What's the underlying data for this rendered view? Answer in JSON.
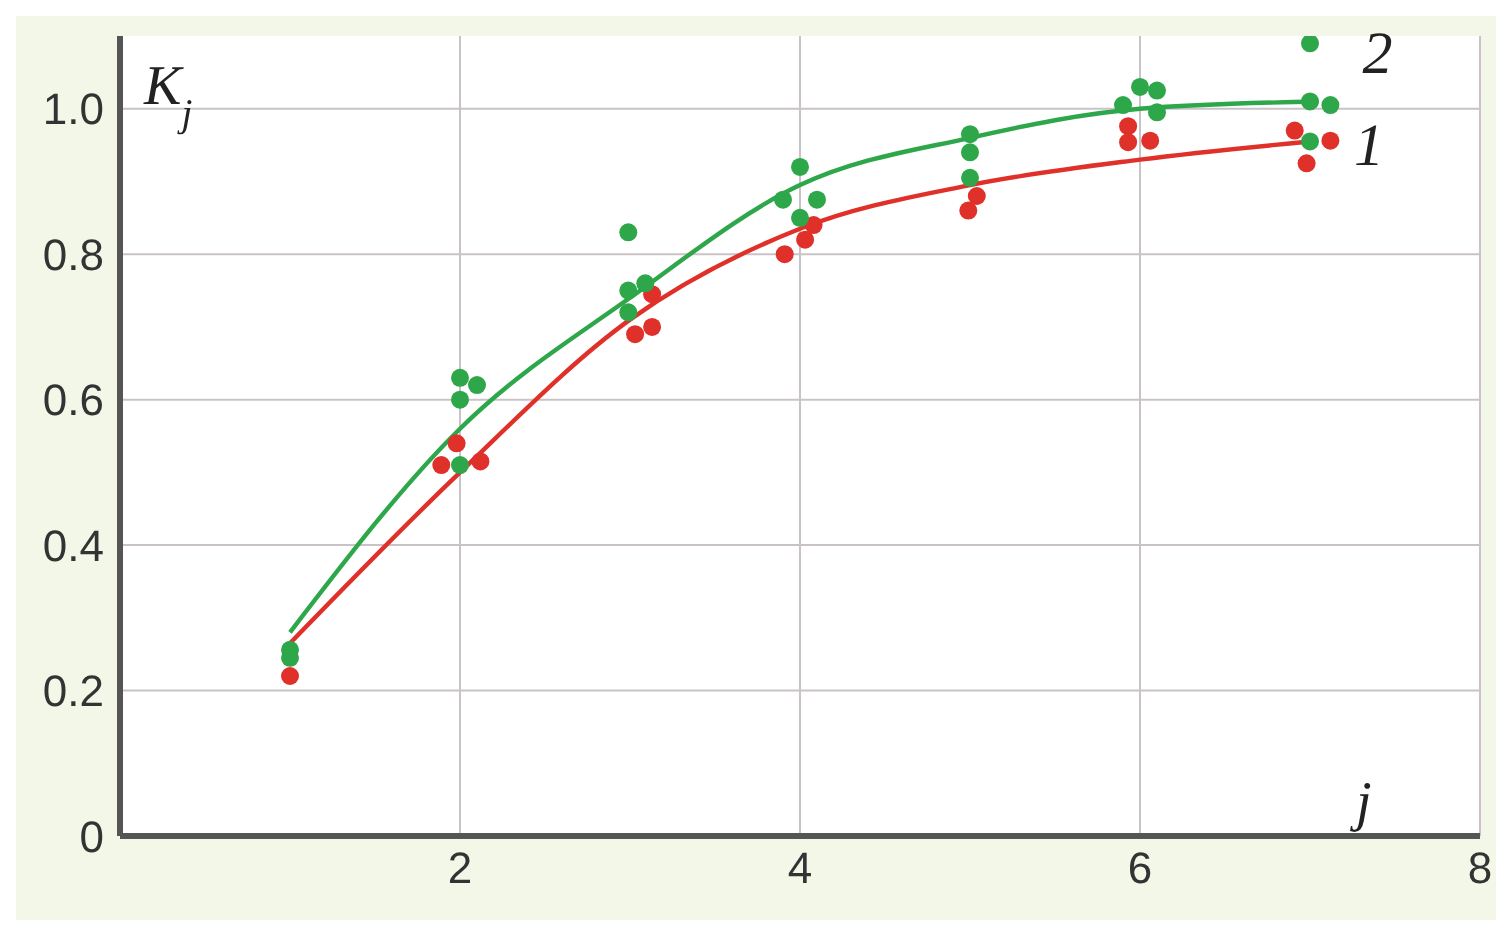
{
  "chart_data": {
    "type": "scatter",
    "ylabel": "K$_{j}$",
    "xlabel": "j",
    "xlim": [
      0,
      8
    ],
    "ylim": [
      0,
      1.1
    ],
    "xticks": [
      {
        "value": 0,
        "label": null
      },
      2,
      4,
      6,
      8
    ],
    "yticks": [
      0,
      0.2,
      0.4,
      0.6,
      0.8,
      {
        "value": 1,
        "label": "1.0"
      }
    ],
    "grid": true,
    "marker": "circle",
    "legend": false,
    "series": [
      {
        "color": "#e0302a",
        "x": [
          1,
          1.89,
          1.98,
          2.12,
          3.03,
          3.13,
          3.13,
          3.91,
          4.03,
          4.08,
          4.99,
          5.04,
          5.93,
          5.93,
          6.06,
          6.91,
          6.98,
          7.12
        ],
        "values": [
          0.22,
          0.51,
          0.54,
          0.515,
          0.69,
          0.7,
          0.745,
          0.8,
          0.82,
          0.84,
          0.86,
          0.88,
          0.954,
          0.976,
          0.956,
          0.97,
          0.925,
          0.956
        ]
      },
      {
        "color": "#2ea64a",
        "x": [
          1,
          1,
          2,
          2.1,
          2,
          2,
          2.99,
          2.99,
          3.09,
          2.99,
          4,
          3.9,
          4.1,
          4,
          5,
          5,
          5,
          5.9,
          6,
          6.1,
          6.1,
          7,
          7,
          7.12,
          7
        ],
        "values": [
          0.256,
          0.245,
          0.63,
          0.62,
          0.6,
          0.51,
          0.83,
          0.75,
          0.76,
          0.72,
          0.92,
          0.875,
          0.875,
          0.85,
          0.965,
          0.94,
          0.905,
          1.005,
          1.03,
          1.025,
          0.995,
          1.09,
          1.01,
          1.005,
          0.955
        ]
      },
      {
        "type": "line",
        "name": "1",
        "color": "#e0302a",
        "marker": "none",
        "x": [
          1,
          2,
          3,
          4,
          5,
          6,
          7
        ],
        "values": [
          0.265,
          0.5,
          0.71,
          0.835,
          0.895,
          0.93,
          0.955
        ]
      },
      {
        "type": "line",
        "name": "2",
        "color": "#2ea64a",
        "marker": "none",
        "x": [
          1,
          2,
          3,
          4,
          5,
          6,
          7.05
        ],
        "values": [
          0.28,
          0.56,
          0.74,
          0.895,
          0.96,
          1.0,
          1.01
        ]
      }
    ]
  }
}
